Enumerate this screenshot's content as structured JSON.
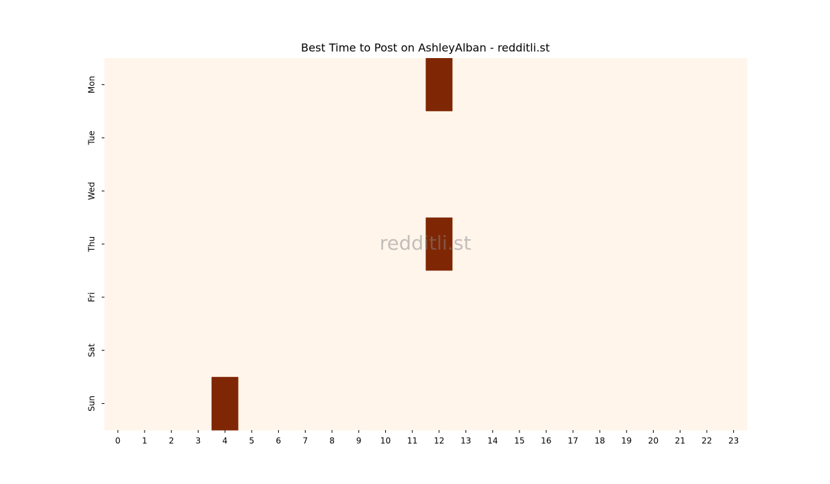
{
  "chart_data": {
    "type": "heatmap",
    "title": "Best Time to Post on AshleyAlban - redditli.st",
    "watermark": "redditli.st",
    "x": [
      0,
      1,
      2,
      3,
      4,
      5,
      6,
      7,
      8,
      9,
      10,
      11,
      12,
      13,
      14,
      15,
      16,
      17,
      18,
      19,
      20,
      21,
      22,
      23
    ],
    "y": [
      "Mon",
      "Tue",
      "Wed",
      "Thu",
      "Fri",
      "Sat",
      "Sun"
    ],
    "values": [
      [
        0,
        0,
        0,
        0,
        0,
        0,
        0,
        0,
        0,
        0,
        0,
        0,
        1,
        0,
        0,
        0,
        0,
        0,
        0,
        0,
        0,
        0,
        0,
        0
      ],
      [
        0,
        0,
        0,
        0,
        0,
        0,
        0,
        0,
        0,
        0,
        0,
        0,
        0,
        0,
        0,
        0,
        0,
        0,
        0,
        0,
        0,
        0,
        0,
        0
      ],
      [
        0,
        0,
        0,
        0,
        0,
        0,
        0,
        0,
        0,
        0,
        0,
        0,
        0,
        0,
        0,
        0,
        0,
        0,
        0,
        0,
        0,
        0,
        0,
        0
      ],
      [
        0,
        0,
        0,
        0,
        0,
        0,
        0,
        0,
        0,
        0,
        0,
        0,
        1,
        0,
        0,
        0,
        0,
        0,
        0,
        0,
        0,
        0,
        0,
        0
      ],
      [
        0,
        0,
        0,
        0,
        0,
        0,
        0,
        0,
        0,
        0,
        0,
        0,
        0,
        0,
        0,
        0,
        0,
        0,
        0,
        0,
        0,
        0,
        0,
        0
      ],
      [
        0,
        0,
        0,
        0,
        0,
        0,
        0,
        0,
        0,
        0,
        0,
        0,
        0,
        0,
        0,
        0,
        0,
        0,
        0,
        0,
        0,
        0,
        0,
        0
      ],
      [
        0,
        0,
        0,
        0,
        1,
        0,
        0,
        0,
        0,
        0,
        0,
        0,
        0,
        0,
        0,
        0,
        0,
        0,
        0,
        0,
        0,
        0,
        0,
        0
      ]
    ],
    "colors": [
      "#fff5eb",
      "#7f2704"
    ]
  }
}
